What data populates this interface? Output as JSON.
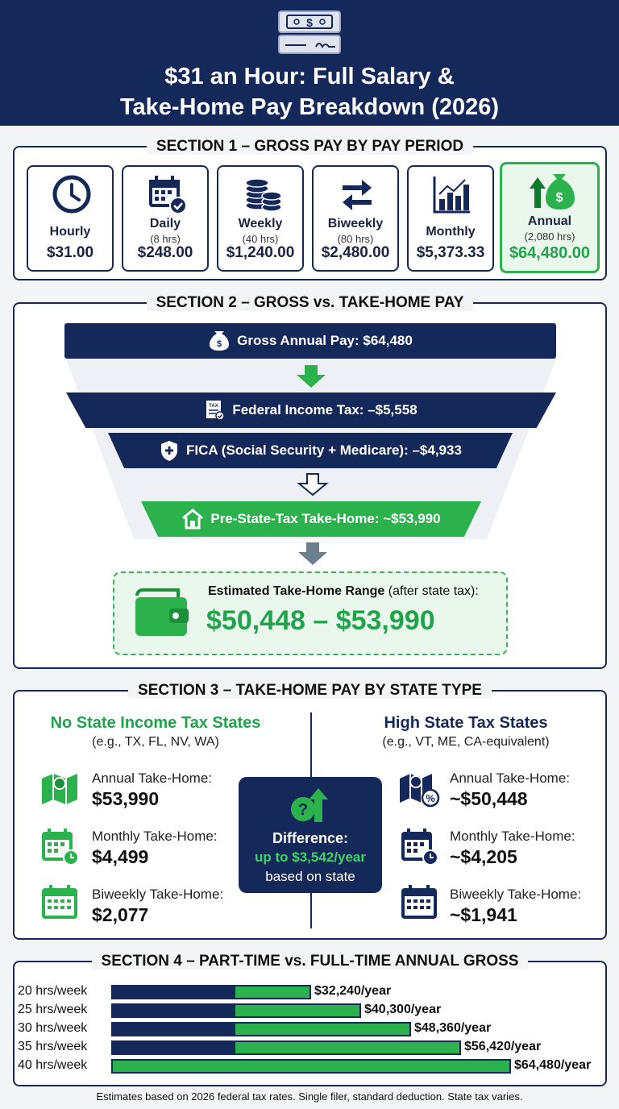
{
  "header": {
    "title_line1": "$31 an Hour: Full Salary &",
    "title_line2": "Take-Home Pay Breakdown (2026)",
    "icon": "paycheck-icon"
  },
  "section1": {
    "title": "SECTION 1 – GROSS PAY BY PAY PERIOD",
    "cards": [
      {
        "label": "Hourly",
        "sub": "",
        "value": "$31.00",
        "icon": "clock-icon"
      },
      {
        "label": "Daily",
        "sub": "(8 hrs)",
        "value": "$248.00",
        "icon": "calendar-check-icon"
      },
      {
        "label": "Weekly",
        "sub": "(40 hrs)",
        "value": "$1,240.00",
        "icon": "coins-stack-icon"
      },
      {
        "label": "Biweekly",
        "sub": "(80 hrs)",
        "value": "$2,480.00",
        "icon": "swap-arrows-icon"
      },
      {
        "label": "Monthly",
        "sub": "",
        "value": "$5,373.33",
        "icon": "bar-chart-icon"
      },
      {
        "label": "Annual",
        "sub": "(2,080 hrs)",
        "value": "$64,480.00",
        "icon": "money-bag-up-icon"
      }
    ]
  },
  "section2": {
    "title": "SECTION 2 – GROSS vs. TAKE-HOME PAY",
    "gross": "Gross Annual Pay: $64,480",
    "federal": "Federal Income Tax: –$5,558",
    "fica": "FICA (Social Security + Medicare): –$4,933",
    "pre_state": "Pre-State-Tax Take-Home: ~$53,990",
    "range_label_bold": "Estimated Take-Home Range",
    "range_label_rest": " (after state tax):",
    "range_value": "$50,448 – $53,990",
    "tax_badge": "TAX"
  },
  "section3": {
    "title": "SECTION 3 – TAKE-HOME PAY BY STATE TYPE",
    "left": {
      "heading": "No State Income Tax States",
      "sub": "(e.g., TX, FL, NV, WA)",
      "rows": [
        {
          "label": "Annual Take-Home:",
          "value": "$53,990",
          "icon": "map-icon"
        },
        {
          "label": "Monthly Take-Home:",
          "value": "$4,499",
          "icon": "calendar-clock-icon"
        },
        {
          "label": "Biweekly Take-Home:",
          "value": "$2,077",
          "icon": "calendar-icon"
        }
      ]
    },
    "right": {
      "heading": "High State Tax States",
      "sub": "(e.g., VT, ME, CA-equivalent)",
      "rows": [
        {
          "label": "Annual Take-Home:",
          "value": "~$50,448",
          "icon": "map-percent-icon"
        },
        {
          "label": "Monthly Take-Home:",
          "value": "~$4,205",
          "icon": "calendar-clock-icon"
        },
        {
          "label": "Biweekly Take-Home:",
          "value": "~$1,941",
          "icon": "calendar-icon"
        }
      ]
    },
    "difference": {
      "label": "Difference:",
      "value": "up to $3,542/year",
      "note": "based on state"
    }
  },
  "section4": {
    "title": "SECTION 4 – PART-TIME vs. FULL-TIME ANNUAL GROSS",
    "max": 64480,
    "rows": [
      {
        "label": "20 hrs/week",
        "amount": 32240,
        "value_label": "$32,240/year"
      },
      {
        "label": "25 hrs/week",
        "amount": 40300,
        "value_label": "$40,300/year"
      },
      {
        "label": "30 hrs/week",
        "amount": 48360,
        "value_label": "$48,360/year"
      },
      {
        "label": "35 hrs/week",
        "amount": 56420,
        "value_label": "$56,420/year"
      },
      {
        "label": "40 hrs/week",
        "amount": 64480,
        "value_label": "$64,480/year"
      }
    ]
  },
  "footer": "Estimates based on 2026 federal tax rates. Single filer, standard deduction. State tax varies.",
  "colors": {
    "navy": "#15285a",
    "green": "#2bb24c",
    "light_green": "#e9f7ec"
  }
}
